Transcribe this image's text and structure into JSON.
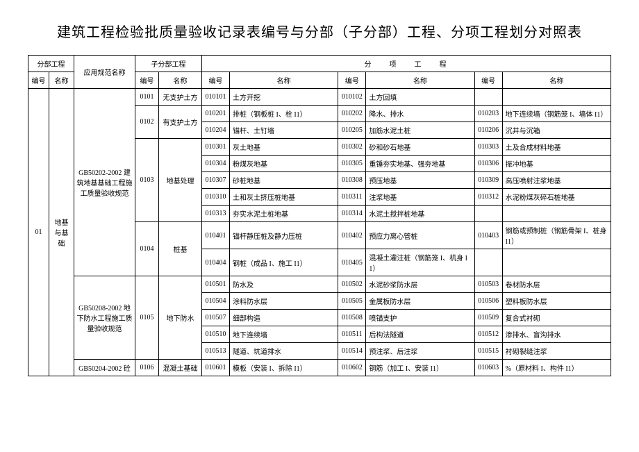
{
  "title": "建筑工程检验批质量验收记录表编号与分部（子分部）工程、分项工程划分对照表",
  "header": {
    "section": "分部工程",
    "spec_name": "应用规范名称",
    "subsection": "子分部工程",
    "item_section": "分项工程",
    "code": "编号",
    "name": "名称"
  },
  "section": {
    "code": "01",
    "name": "地基与基础"
  },
  "spec1": "GB50202-2002 建筑地基基础工程施工质量验收规范",
  "spec2": "GB50208-2002 地下防水工程施工质量验收规范",
  "spec3": "GB50204-2002 砼",
  "sub": {
    "r0101": "0101",
    "n0101": "无支护土方",
    "r0102": "0102",
    "n0102": "有支护土方",
    "r0103": "0103",
    "n0103": "地基处理",
    "r0104": "0104",
    "n0104": "桩基",
    "r0105": "0105",
    "n0105": "地下防水",
    "r0106": "0106",
    "n0106": "混凝土基础"
  },
  "items": {
    "c010101": "010101",
    "n010101": "土方开挖",
    "c010102": "010102",
    "n010102": "土方回填",
    "c010201": "010201",
    "n010201": "排桩（钢板桩 I、栓 I1）",
    "c010202": "010202",
    "n010202": "降水、排水",
    "c010203": "010203",
    "n010203": "地下连续墙（钢筋笼 I、墙体 I1）",
    "c010204": "010204",
    "n010204": "锚杆、土钉墙",
    "c010205": "010205",
    "n010205": "加筋水泥土桩",
    "c010206": "010206",
    "n010206": "沉井与沉箱",
    "c010301": "010301",
    "n010301": "灰土地基",
    "c010302": "010302",
    "n010302": "砂和砂石地基",
    "c010303": "010303",
    "n010303": "土及合成材料地基",
    "c010304": "010304",
    "n010304": "粉煤灰地基",
    "c010305": "010305",
    "n010305": "重锤夯实地基、强夯地基",
    "c010306": "010306",
    "n010306": "振冲地基",
    "c010307": "010307",
    "n010307": "砂桩地基",
    "c010308": "010308",
    "n010308": "预压地基",
    "c010309": "010309",
    "n010309": "高压喷射注浆地基",
    "c010310": "010310",
    "n010310": "土和灰土挤压桩地基",
    "c010311": "010311",
    "n010311": "注浆地基",
    "c010312": "010312",
    "n010312": "水泥粉煤灰碎石桩地基",
    "c010313": "010313",
    "n010313": "夯实水泥土桩地基",
    "c010314": "010314",
    "n010314": "水泥土搅拌桩地基",
    "c010401": "010401",
    "n010401": "锚杆静压桩及静力压桩",
    "c010402": "010402",
    "n010402": "预应力离心管桩",
    "c010403": "010403",
    "n010403": "钢筋或预制桩（钢筋骨架 I、桩身 I1）",
    "c010404": "010404",
    "n010404": "钢桩（成品 I、施工 I1）",
    "c010405": "010405",
    "n010405": "混凝土灌注桩（钢筋笼 I、机身 I1）",
    "c010501": "010501",
    "n010501": "防水及",
    "c010502": "010502",
    "n010502": "水泥砂浆防水层",
    "c010503": "010503",
    "n010503": "卷材防水层",
    "c010504": "010504",
    "n010504": "涂料防水层",
    "c010505": "010505",
    "n010505": "金属板防水层",
    "c010506": "010506",
    "n010506": "塑料板防水层",
    "c010507": "010507",
    "n010507": "细部构造",
    "c010508": "010508",
    "n010508": "喷锚支护",
    "c010509": "010509",
    "n010509": "复合式衬砌",
    "c010510": "010510",
    "n010510": "地下连续墙",
    "c010511": "010511",
    "n010511": "后构法隧道",
    "c010512": "010512",
    "n010512": "渗排水、盲沟排水",
    "c010513": "010513",
    "n010513": "隧道、坑道排水",
    "c010514": "010514",
    "n010514": "预注浆、后注浆",
    "c010515": "010515",
    "n010515": "衬砌裂缝注浆",
    "c010601": "010601",
    "n010601": "模板（安装 I、拆除 I1）",
    "c010602": "010602",
    "n010602": "钢筋（加工 I、安装 I1）",
    "c010603": "010603",
    "n010603": "%（原材料 I、构件 I1）"
  }
}
